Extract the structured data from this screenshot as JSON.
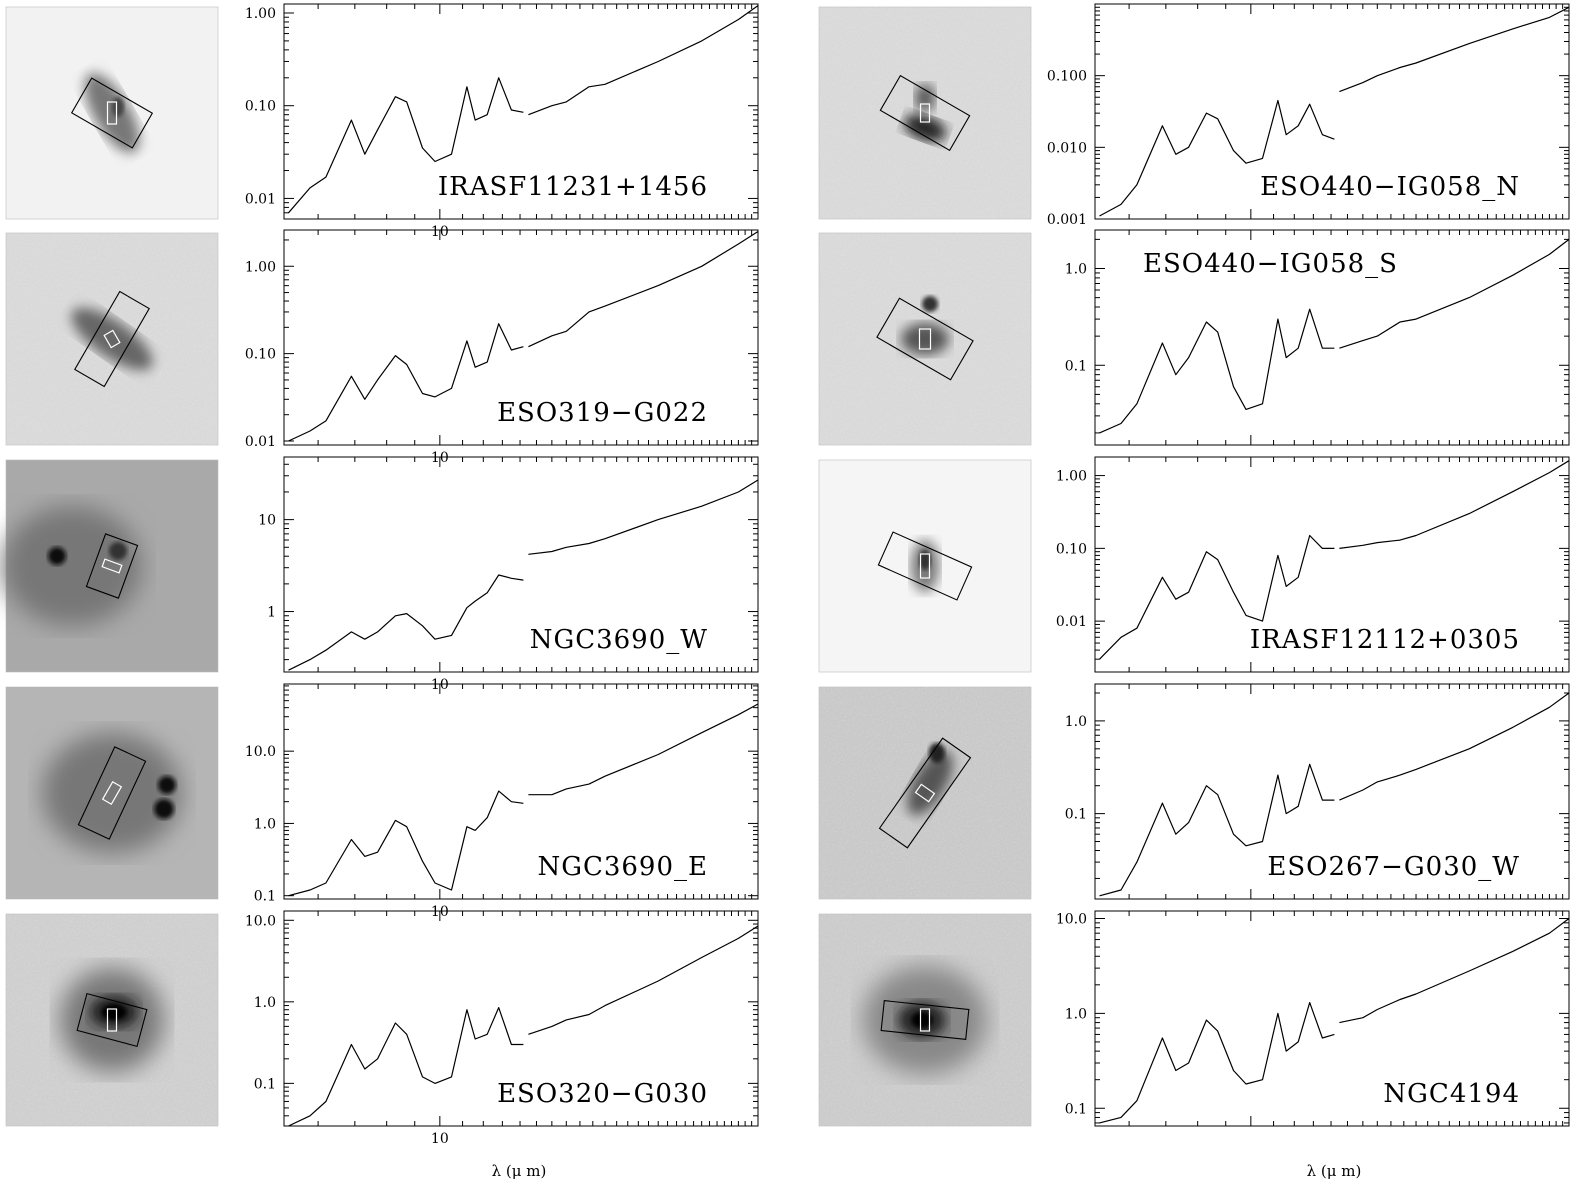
{
  "x_axis_title": "λ (μ m)",
  "chart_data": [
    {
      "type": "line",
      "label": "IRASF11231+1456",
      "x_tick_labels": [
        "10"
      ],
      "y_tick_labels": [
        "0.01",
        "0.10",
        "1.00"
      ],
      "y_ticks": [
        0.01,
        0.1,
        1
      ],
      "ylim": [
        0.006,
        1.25
      ],
      "xlim": [
        5.2,
        38
      ],
      "log_x": true,
      "log_y": true,
      "x_label": "",
      "y_label": "",
      "sl_x": [
        5.3,
        5.8,
        6.2,
        6.9,
        7.3,
        7.7,
        8.3,
        8.7,
        9.3,
        9.8,
        10.5,
        11.2,
        11.6,
        12.2,
        12.8,
        13.5,
        14.2
      ],
      "sl_y": [
        0.007,
        0.013,
        0.017,
        0.07,
        0.03,
        0.055,
        0.125,
        0.11,
        0.035,
        0.025,
        0.03,
        0.16,
        0.07,
        0.08,
        0.2,
        0.09,
        0.085
      ],
      "ll_x": [
        14.5,
        16,
        17,
        18.7,
        20,
        25,
        30,
        35,
        38
      ],
      "ll_y": [
        0.08,
        0.1,
        0.11,
        0.16,
        0.17,
        0.3,
        0.5,
        0.85,
        1.2
      ]
    },
    {
      "type": "line",
      "label": "ESO440−IG058_N",
      "x_tick_labels": [],
      "y_tick_labels": [
        "0.001",
        "0.010",
        "0.100"
      ],
      "y_ticks": [
        0.001,
        0.01,
        0.1
      ],
      "ylim": [
        0.001,
        1
      ],
      "xlim": [
        5.2,
        38
      ],
      "log_x": true,
      "log_y": true,
      "x_label": "",
      "y_label": "",
      "sl_x": [
        5.3,
        5.8,
        6.2,
        6.9,
        7.3,
        7.7,
        8.3,
        8.7,
        9.3,
        9.8,
        10.5,
        11.2,
        11.6,
        12.2,
        12.8,
        13.5,
        14.2
      ],
      "sl_y": [
        0.0011,
        0.0016,
        0.003,
        0.02,
        0.008,
        0.01,
        0.03,
        0.025,
        0.009,
        0.006,
        0.007,
        0.045,
        0.015,
        0.02,
        0.04,
        0.015,
        0.013
      ],
      "ll_x": [
        14.5,
        16,
        17,
        18.7,
        20,
        25,
        30,
        35,
        38
      ],
      "ll_y": [
        0.06,
        0.08,
        0.1,
        0.13,
        0.15,
        0.28,
        0.45,
        0.65,
        0.9
      ]
    },
    {
      "type": "line",
      "label": "ESO319−G022",
      "x_tick_labels": [
        "10"
      ],
      "y_tick_labels": [
        "0.01",
        "0.10",
        "1.00"
      ],
      "y_ticks": [
        0.01,
        0.1,
        1
      ],
      "ylim": [
        0.009,
        2.6
      ],
      "xlim": [
        5.2,
        38
      ],
      "log_x": true,
      "log_y": true,
      "x_label": "",
      "y_label": "",
      "sl_x": [
        5.3,
        5.8,
        6.2,
        6.9,
        7.3,
        7.7,
        8.3,
        8.7,
        9.3,
        9.8,
        10.5,
        11.2,
        11.6,
        12.2,
        12.8,
        13.5,
        14.2
      ],
      "sl_y": [
        0.01,
        0.013,
        0.017,
        0.055,
        0.03,
        0.05,
        0.095,
        0.075,
        0.035,
        0.032,
        0.04,
        0.14,
        0.07,
        0.08,
        0.22,
        0.11,
        0.12
      ],
      "ll_x": [
        14.5,
        16,
        17,
        18.7,
        20,
        25,
        30,
        35,
        38
      ],
      "ll_y": [
        0.12,
        0.16,
        0.18,
        0.3,
        0.35,
        0.6,
        1.0,
        1.8,
        2.5
      ]
    },
    {
      "type": "line",
      "label": "ESO440−IG058_S",
      "x_tick_labels": [],
      "y_tick_labels": [
        "0.1",
        "1.0"
      ],
      "y_ticks": [
        0.1,
        1
      ],
      "ylim": [
        0.015,
        2.5
      ],
      "xlim": [
        5.2,
        38
      ],
      "log_x": true,
      "log_y": true,
      "x_label": "",
      "y_label": "",
      "sl_x": [
        5.3,
        5.8,
        6.2,
        6.9,
        7.3,
        7.7,
        8.3,
        8.7,
        9.3,
        9.8,
        10.5,
        11.2,
        11.6,
        12.2,
        12.8,
        13.5,
        14.2
      ],
      "sl_y": [
        0.02,
        0.025,
        0.04,
        0.17,
        0.08,
        0.12,
        0.28,
        0.22,
        0.06,
        0.035,
        0.04,
        0.3,
        0.12,
        0.15,
        0.38,
        0.15,
        0.15
      ],
      "ll_x": [
        14.5,
        16,
        17,
        18.7,
        20,
        25,
        30,
        35,
        38
      ],
      "ll_y": [
        0.15,
        0.18,
        0.2,
        0.28,
        0.3,
        0.5,
        0.85,
        1.4,
        2.0
      ]
    },
    {
      "type": "line",
      "label": "NGC3690_W",
      "x_tick_labels": [
        "10"
      ],
      "y_tick_labels": [
        "1",
        "10"
      ],
      "y_ticks": [
        1,
        10
      ],
      "ylim": [
        0.22,
        48
      ],
      "xlim": [
        5.2,
        38
      ],
      "log_x": true,
      "log_y": true,
      "x_label": "",
      "y_label": "",
      "sl_x": [
        5.3,
        5.8,
        6.2,
        6.9,
        7.3,
        7.7,
        8.3,
        8.7,
        9.3,
        9.8,
        10.5,
        11.2,
        11.6,
        12.2,
        12.8,
        13.5,
        14.2
      ],
      "sl_y": [
        0.23,
        0.3,
        0.38,
        0.6,
        0.5,
        0.6,
        0.9,
        0.95,
        0.7,
        0.5,
        0.55,
        1.1,
        1.3,
        1.6,
        2.5,
        2.3,
        2.2
      ],
      "ll_x": [
        14.5,
        16,
        17,
        18.7,
        20,
        25,
        30,
        35,
        38
      ],
      "ll_y": [
        4.2,
        4.5,
        5,
        5.5,
        6.2,
        10,
        14,
        20,
        27
      ]
    },
    {
      "type": "line",
      "label": "IRASF12112+0305",
      "x_tick_labels": [],
      "y_tick_labels": [
        "0.01",
        "0.10",
        "1.00"
      ],
      "y_ticks": [
        0.01,
        0.1,
        1
      ],
      "ylim": [
        0.002,
        1.8
      ],
      "xlim": [
        5.2,
        38
      ],
      "log_x": true,
      "log_y": true,
      "x_label": "",
      "y_label": "",
      "sl_x": [
        5.3,
        5.8,
        6.2,
        6.9,
        7.3,
        7.7,
        8.3,
        8.7,
        9.3,
        9.8,
        10.5,
        11.2,
        11.6,
        12.2,
        12.8,
        13.5,
        14.2
      ],
      "sl_y": [
        0.003,
        0.006,
        0.008,
        0.04,
        0.02,
        0.025,
        0.09,
        0.07,
        0.025,
        0.012,
        0.01,
        0.08,
        0.03,
        0.04,
        0.15,
        0.1,
        0.1
      ],
      "ll_x": [
        14.5,
        16,
        17,
        18.7,
        20,
        25,
        30,
        35,
        38
      ],
      "ll_y": [
        0.1,
        0.11,
        0.12,
        0.13,
        0.15,
        0.3,
        0.6,
        1.1,
        1.6
      ]
    },
    {
      "type": "line",
      "label": "NGC3690_E",
      "x_tick_labels": [
        "10"
      ],
      "y_tick_labels": [
        "0.1",
        "1.0",
        "10.0"
      ],
      "y_ticks": [
        0.1,
        1,
        10
      ],
      "ylim": [
        0.09,
        85
      ],
      "xlim": [
        5.2,
        38
      ],
      "log_x": true,
      "log_y": true,
      "x_label": "",
      "y_label": "",
      "sl_x": [
        5.3,
        5.8,
        6.2,
        6.9,
        7.3,
        7.7,
        8.3,
        8.7,
        9.3,
        9.8,
        10.5,
        11.2,
        11.6,
        12.2,
        12.8,
        13.5,
        14.2
      ],
      "sl_y": [
        0.1,
        0.12,
        0.15,
        0.6,
        0.35,
        0.4,
        1.1,
        0.9,
        0.3,
        0.15,
        0.12,
        0.9,
        0.8,
        1.2,
        2.8,
        2.0,
        1.9
      ],
      "ll_x": [
        14.5,
        16,
        17,
        18.7,
        20,
        25,
        30,
        35,
        38
      ],
      "ll_y": [
        2.5,
        2.5,
        3,
        3.5,
        4.5,
        9,
        18,
        32,
        45
      ]
    },
    {
      "type": "line",
      "label": "ESO267−G030_W",
      "x_tick_labels": [],
      "y_tick_labels": [
        "0.1",
        "1.0"
      ],
      "y_ticks": [
        0.1,
        1
      ],
      "ylim": [
        0.012,
        2.5
      ],
      "xlim": [
        5.2,
        38
      ],
      "log_x": true,
      "log_y": true,
      "x_label": "",
      "y_label": "",
      "sl_x": [
        5.3,
        5.8,
        6.2,
        6.9,
        7.3,
        7.7,
        8.3,
        8.7,
        9.3,
        9.8,
        10.5,
        11.2,
        11.6,
        12.2,
        12.8,
        13.5,
        14.2
      ],
      "sl_y": [
        0.013,
        0.015,
        0.03,
        0.13,
        0.06,
        0.08,
        0.2,
        0.16,
        0.06,
        0.045,
        0.05,
        0.26,
        0.1,
        0.12,
        0.34,
        0.14,
        0.14
      ],
      "ll_x": [
        14.5,
        16,
        17,
        18.7,
        20,
        25,
        30,
        35,
        38
      ],
      "ll_y": [
        0.14,
        0.18,
        0.22,
        0.26,
        0.3,
        0.5,
        0.85,
        1.4,
        2.0
      ]
    },
    {
      "type": "line",
      "label": "ESO320−G030",
      "x_tick_labels": [
        "10"
      ],
      "y_tick_labels": [
        "0.1",
        "1.0",
        "10.0"
      ],
      "y_ticks": [
        0.1,
        1,
        10
      ],
      "ylim": [
        0.03,
        13
      ],
      "xlim": [
        5.2,
        38
      ],
      "log_x": true,
      "log_y": true,
      "x_label": "",
      "y_label": "",
      "sl_x": [
        5.3,
        5.8,
        6.2,
        6.9,
        7.3,
        7.7,
        8.3,
        8.7,
        9.3,
        9.8,
        10.5,
        11.2,
        11.6,
        12.2,
        12.8,
        13.5,
        14.2
      ],
      "sl_y": [
        0.03,
        0.04,
        0.06,
        0.3,
        0.15,
        0.2,
        0.55,
        0.4,
        0.12,
        0.1,
        0.12,
        0.8,
        0.35,
        0.4,
        0.85,
        0.3,
        0.3
      ],
      "ll_x": [
        14.5,
        16,
        17,
        18.7,
        20,
        25,
        30,
        35,
        38
      ],
      "ll_y": [
        0.4,
        0.5,
        0.6,
        0.7,
        0.9,
        1.8,
        3.5,
        6,
        8.5
      ]
    },
    {
      "type": "line",
      "label": "NGC4194",
      "x_tick_labels": [],
      "y_tick_labels": [
        "0.1",
        "1.0",
        "10.0"
      ],
      "y_ticks": [
        0.1,
        1,
        10
      ],
      "ylim": [
        0.065,
        12
      ],
      "xlim": [
        5.2,
        38
      ],
      "log_x": true,
      "log_y": true,
      "x_label": "",
      "y_label": "",
      "sl_x": [
        5.3,
        5.8,
        6.2,
        6.9,
        7.3,
        7.7,
        8.3,
        8.7,
        9.3,
        9.8,
        10.5,
        11.2,
        11.6,
        12.2,
        12.8,
        13.5,
        14.2
      ],
      "sl_y": [
        0.07,
        0.08,
        0.12,
        0.55,
        0.25,
        0.3,
        0.85,
        0.65,
        0.25,
        0.18,
        0.2,
        1.0,
        0.4,
        0.5,
        1.3,
        0.55,
        0.6
      ],
      "ll_x": [
        14.5,
        16,
        17,
        18.7,
        20,
        25,
        30,
        35,
        38
      ],
      "ll_y": [
        0.8,
        0.9,
        1.1,
        1.4,
        1.6,
        2.8,
        4.5,
        7,
        10
      ]
    }
  ]
}
